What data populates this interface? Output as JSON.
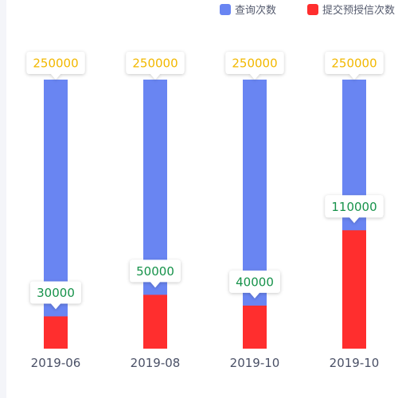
{
  "colors": {
    "query": "#6985f2",
    "submit": "#ff2e2e",
    "query_label": "#f2b800",
    "submit_label": "#16924a",
    "tick": "#4a5066",
    "legend_text": "#555b6e"
  },
  "chart_data": {
    "type": "bar",
    "categories": [
      "2019-06",
      "2019-08",
      "2019-10",
      "2019-10"
    ],
    "series": [
      {
        "name": "查询次数",
        "values": [
          250000,
          250000,
          250000,
          250000
        ]
      },
      {
        "name": "提交预授信次数",
        "values": [
          30000,
          50000,
          40000,
          110000
        ]
      }
    ],
    "ylim": [
      0,
      250000
    ],
    "legend": "top-right",
    "grid": false,
    "data_labels": true
  }
}
